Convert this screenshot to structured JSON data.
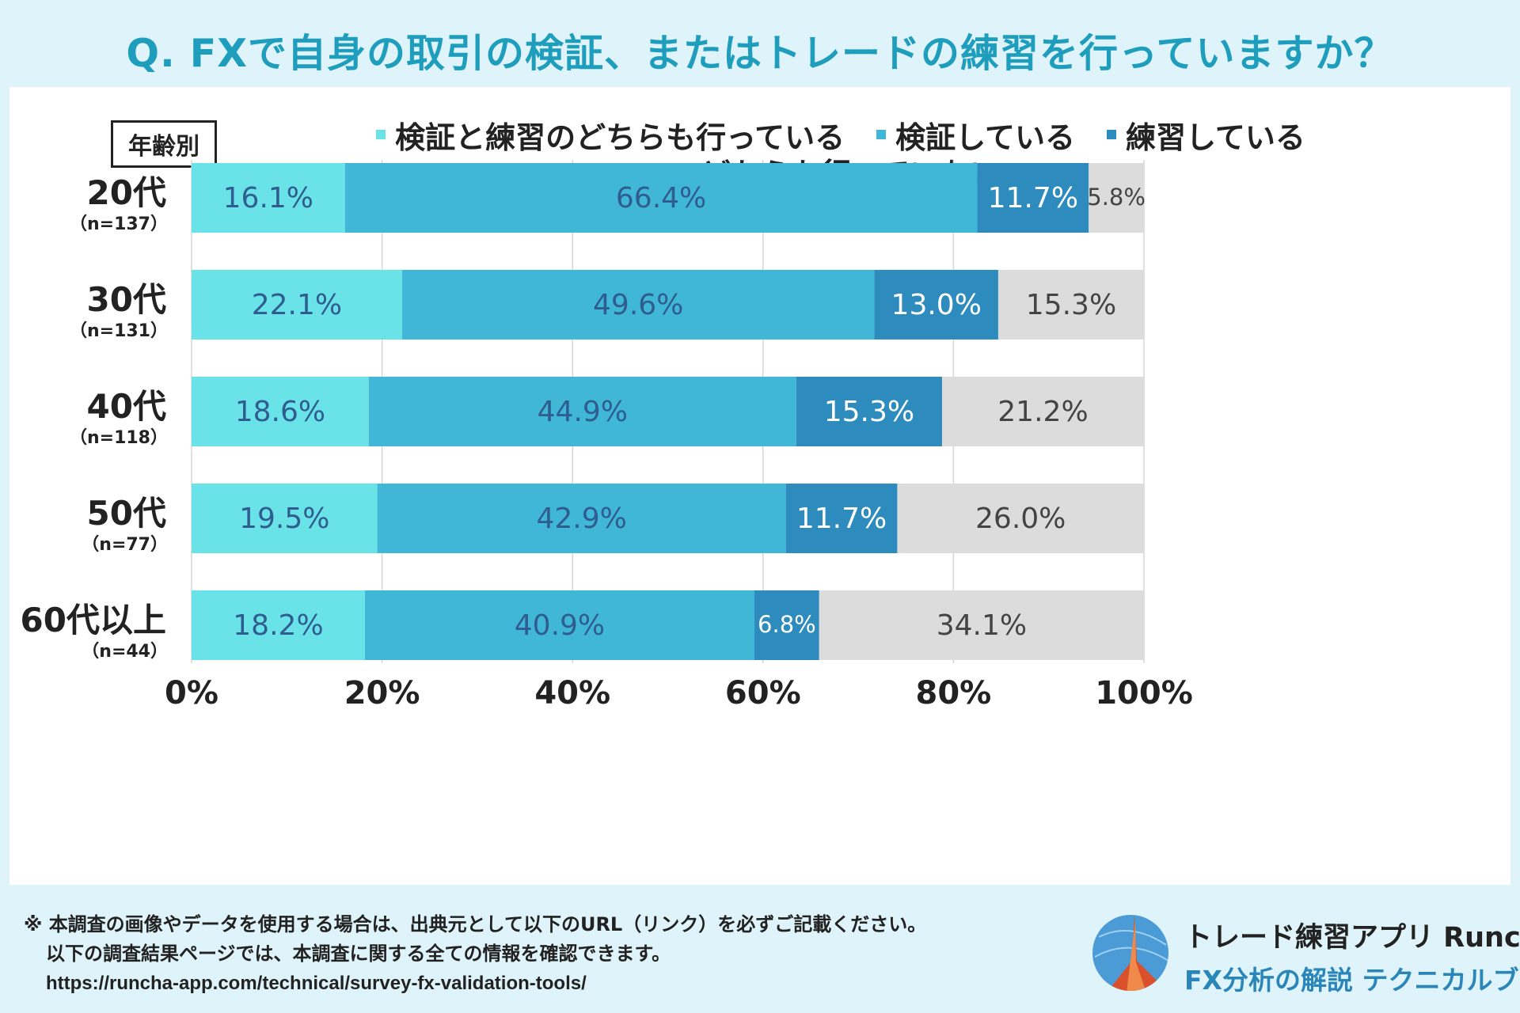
{
  "header": {
    "title": "Q. FXで自身の取引の検証、またはトレードの練習を行っていますか？"
  },
  "chart_data": {
    "type": "bar",
    "orientation": "horizontal",
    "stacked": true,
    "group_label": "年齢別",
    "categories": [
      {
        "label": "20代",
        "n": "（n=137）"
      },
      {
        "label": "30代",
        "n": "（n=131）"
      },
      {
        "label": "40代",
        "n": "（n=118）"
      },
      {
        "label": "50代",
        "n": "（n=77）"
      },
      {
        "label": "60代以上",
        "n": "（n=44）"
      }
    ],
    "series": [
      {
        "name": "検証と練習のどちらも行っている",
        "color": "#6ae3e8",
        "label_color": "#2f5d8f",
        "values": [
          16.1,
          22.1,
          18.6,
          19.5,
          18.2
        ],
        "labels": [
          "16.1%",
          "22.1%",
          "18.6%",
          "19.5%",
          "18.2%"
        ]
      },
      {
        "name": "検証している",
        "color": "#40b7d6",
        "label_color": "#2f5d8f",
        "values": [
          66.4,
          49.6,
          44.9,
          42.9,
          40.9
        ],
        "labels": [
          "66.4%",
          "49.6%",
          "44.9%",
          "42.9%",
          "40.9%"
        ]
      },
      {
        "name": "練習している",
        "color": "#2e8bbd",
        "label_color": "#ffffff",
        "values": [
          11.7,
          13.0,
          15.3,
          11.7,
          6.8
        ],
        "labels": [
          "11.7%",
          "13.0%",
          "15.3%",
          "11.7%",
          "6.8%"
        ]
      },
      {
        "name": "どちらも行っていない",
        "color": "#dcdcdc",
        "label_color": "#444444",
        "values": [
          5.8,
          15.3,
          21.2,
          26.0,
          34.1
        ],
        "labels": [
          "5.8%",
          "15.3%",
          "21.2%",
          "26.0%",
          "34.1%"
        ]
      }
    ],
    "x_ticks": [
      "0%",
      "20%",
      "40%",
      "60%",
      "80%",
      "100%"
    ],
    "xlim": [
      0,
      100
    ],
    "grid": true,
    "legend_position": "top-center"
  },
  "footer": {
    "note_line1": "※ 本調査の画像やデータを使用する場合は、出典元として以下のURL（リンク）を必ずご記載ください。",
    "note_line2": "以下の調査結果ページでは、本調査に関する全ての情報を確認できます。",
    "url": "https://runcha-app.com/technical/survey-fx-validation-tools/"
  },
  "brand": {
    "name": "トレード練習アプリ Runcha",
    "subtitle": "FX分析の解説 テクニカルブック"
  }
}
